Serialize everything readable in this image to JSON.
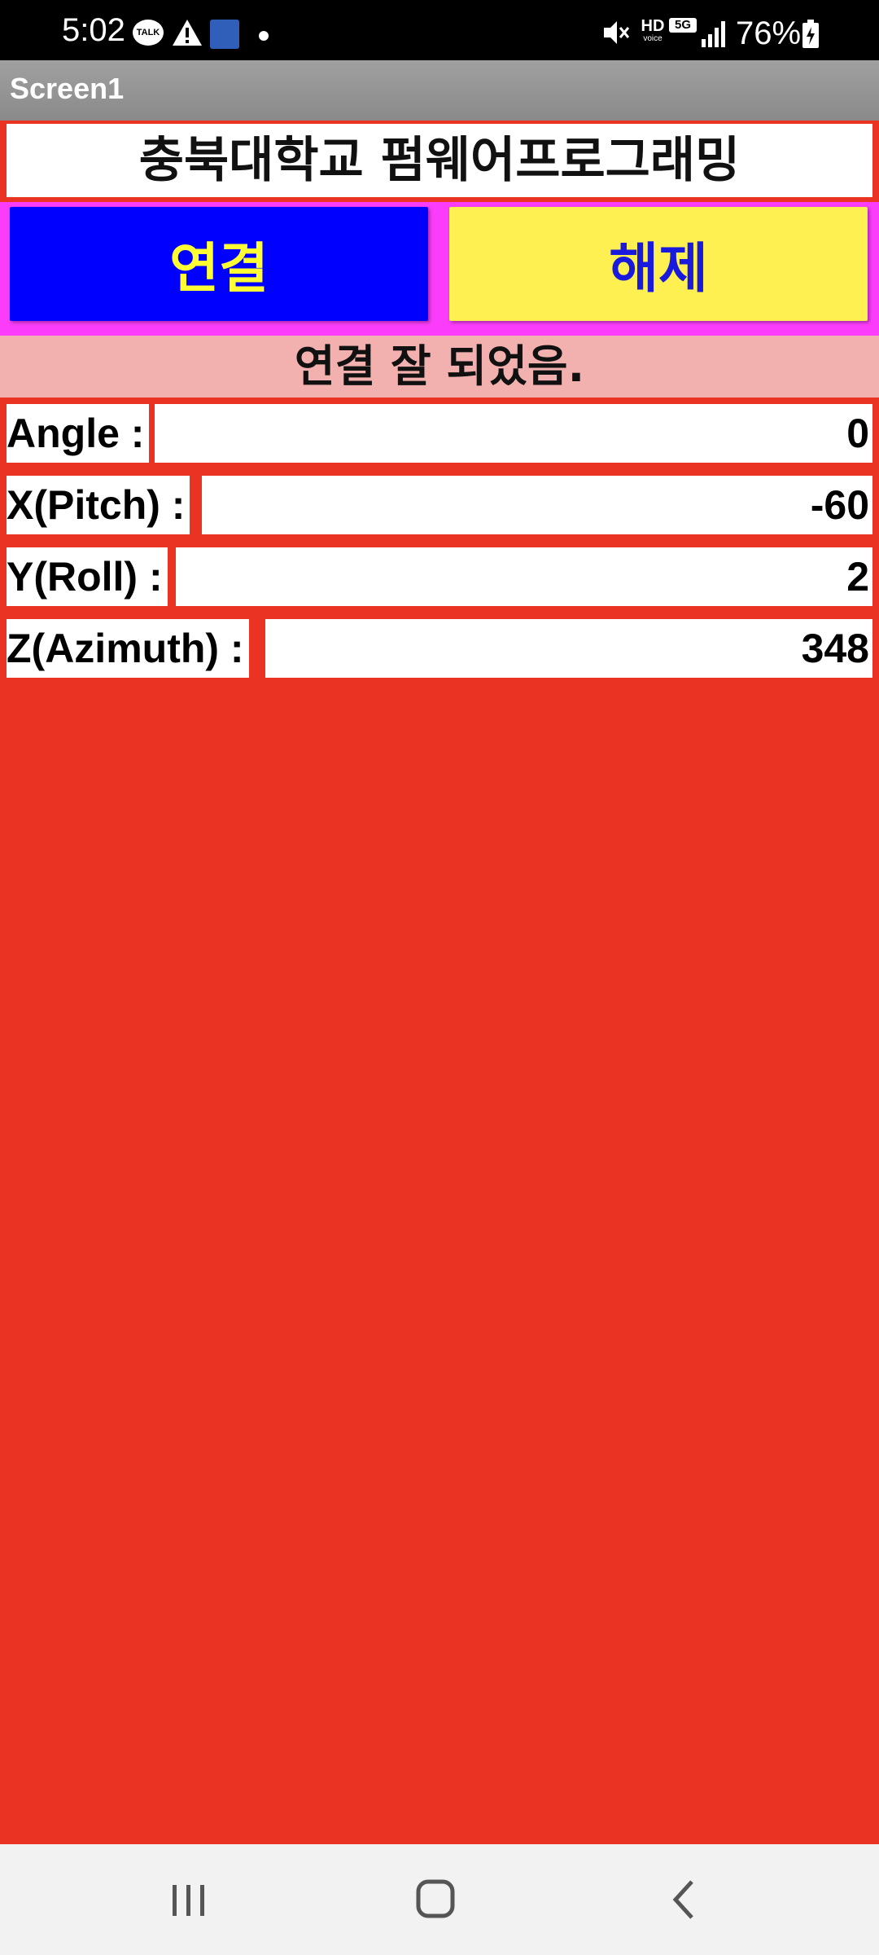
{
  "status_bar": {
    "time": "5:02",
    "talk_label": "TALK",
    "hd_label": "HD",
    "voice_label": "voice",
    "network_label": "5G",
    "battery_percent": "76%"
  },
  "app": {
    "screen_title": "Screen1",
    "header": "충북대학교 펌웨어프로그래밍"
  },
  "buttons": {
    "connect_label": "연결",
    "disconnect_label": "해제"
  },
  "status_message": "연결 잘 되었음.",
  "sensors": {
    "angle": {
      "label": "Angle :",
      "value": "0"
    },
    "pitch": {
      "label": "X(Pitch) :",
      "value": "-60"
    },
    "roll": {
      "label": "Y(Roll) :",
      "value": "2"
    },
    "azimuth": {
      "label": "Z(Azimuth) :",
      "value": "348"
    }
  },
  "colors": {
    "background": "#EA3323",
    "connect_bg": "#0000FF",
    "connect_text": "#FFFF33",
    "disconnect_bg": "#FDF050",
    "disconnect_text": "#1A1ADD",
    "button_row_bg": "#FB3DFB",
    "status_bg": "#F2B0AE"
  },
  "icons": {
    "status_bar": [
      "kakaotalk-icon",
      "warning-icon",
      "app-notification-icon",
      "notification-dot-icon",
      "mute-icon",
      "hd-voice-icon",
      "5g-icon",
      "signal-icon",
      "battery-charging-icon"
    ],
    "nav": [
      "recent-apps-icon",
      "home-icon",
      "back-icon"
    ]
  }
}
